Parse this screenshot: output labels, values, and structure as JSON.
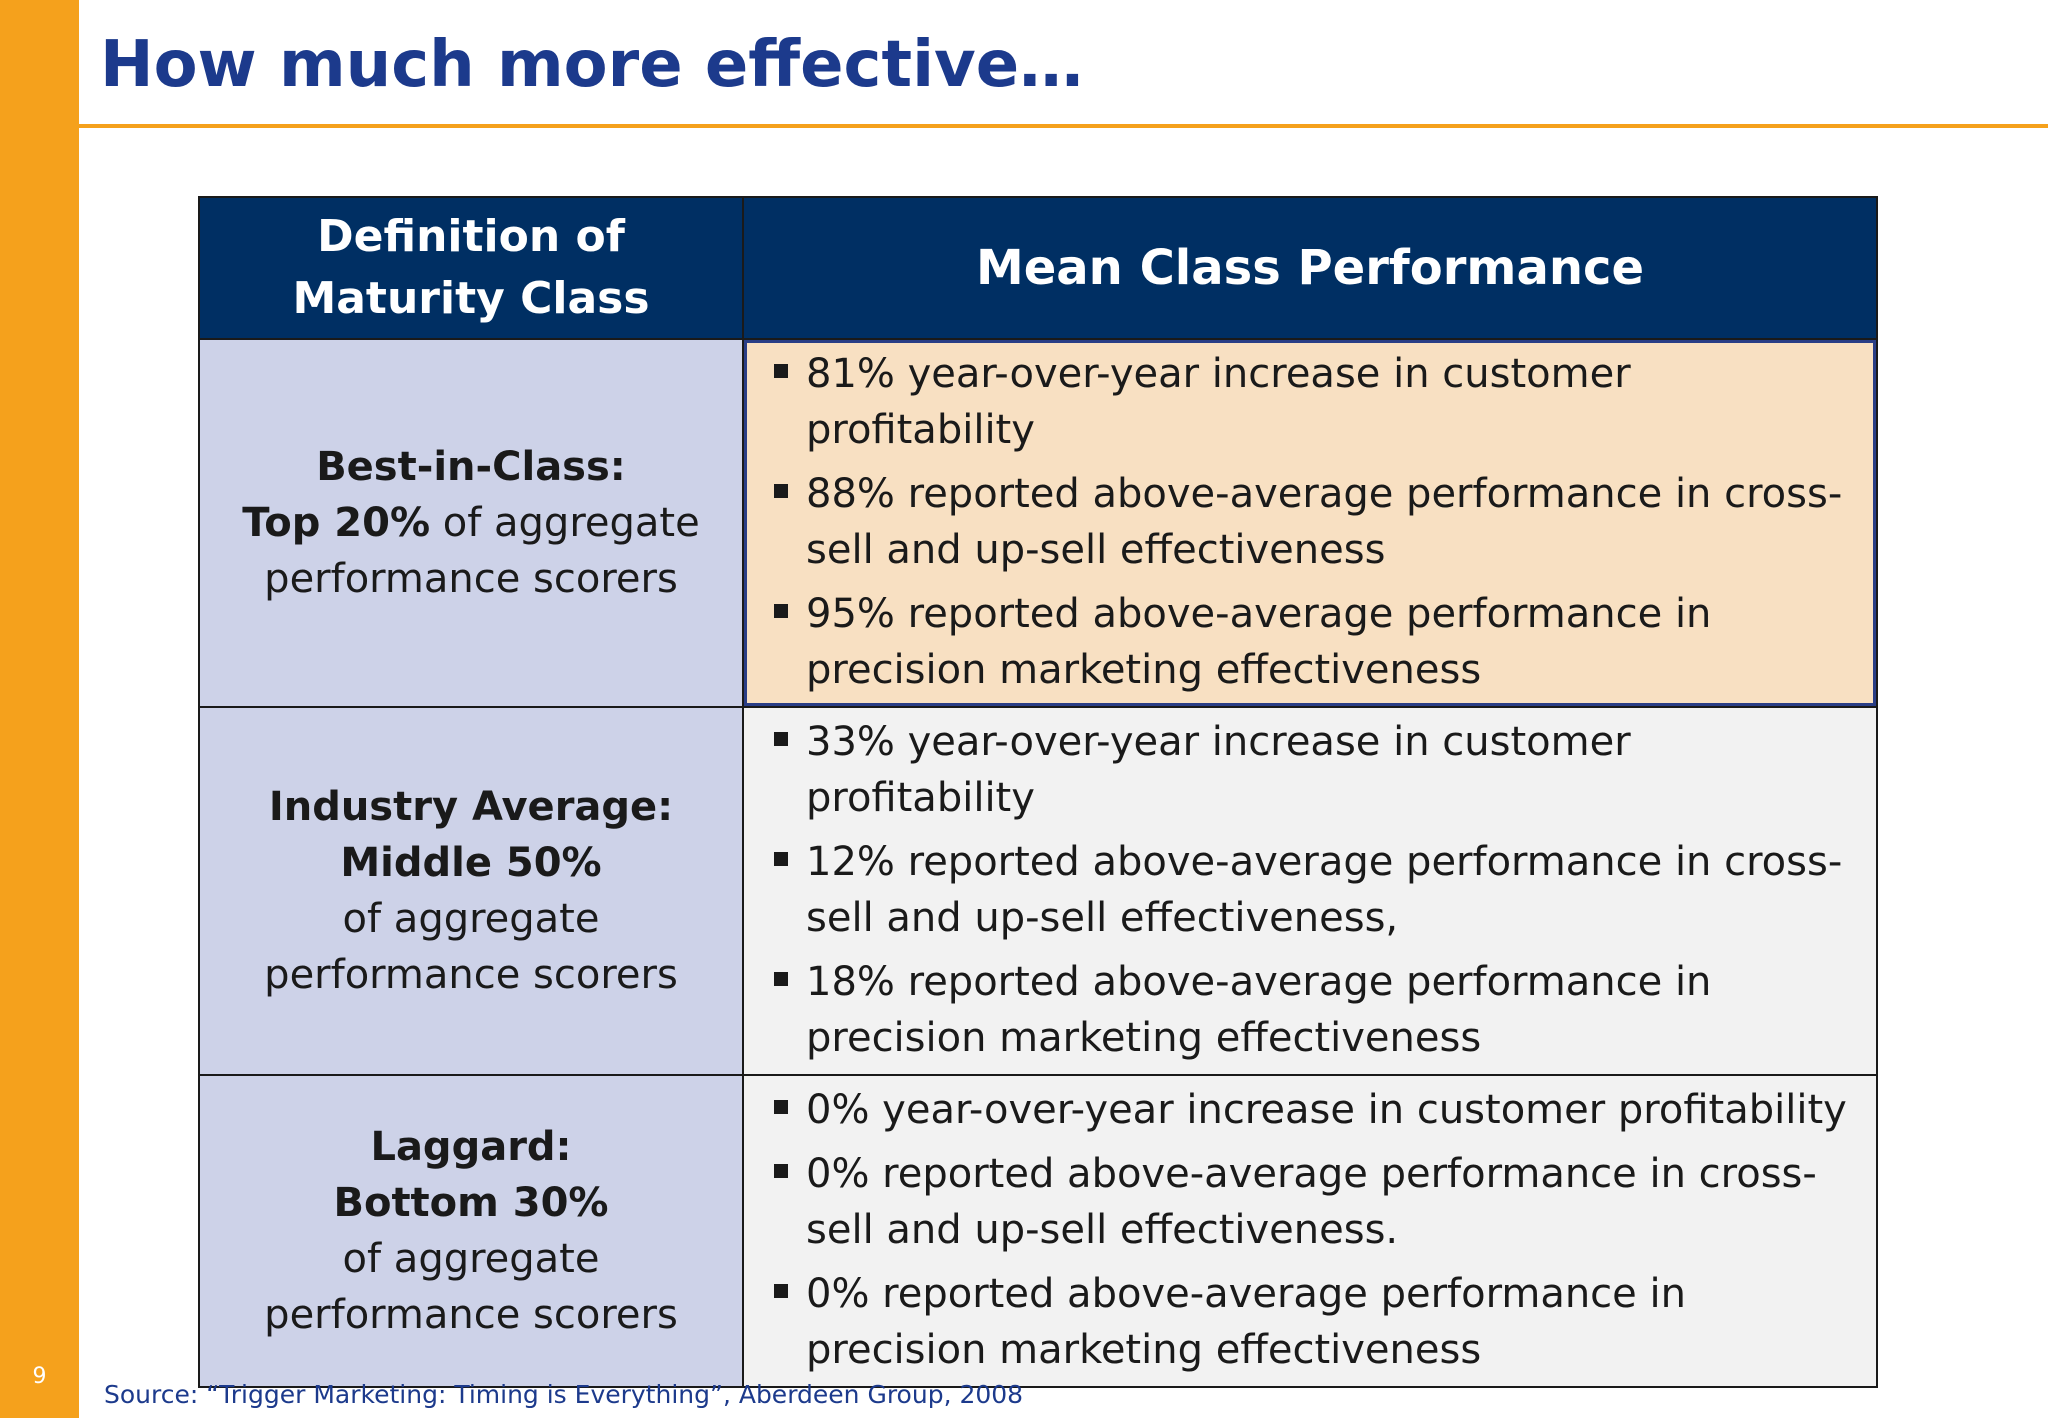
{
  "slide": {
    "title": "How much more effective…",
    "page_number": "9",
    "source": "Source:  “Trigger Marketing: Timing is Everything”, Aberdeen Group, 2008",
    "colors": {
      "accent_orange": "#f5a11c",
      "title_blue": "#1c3a8c",
      "header_navy": "#002f63",
      "definition_cell": "#cdd2e8",
      "highlight_cell": "#f8e0c2",
      "body_cell": "#f2f2f2"
    }
  },
  "table": {
    "headers": {
      "definition": "Definition of Maturity Class",
      "performance": "Mean Class Performance"
    },
    "rows": [
      {
        "class_name": "Best-in-Class:",
        "segment_bold": "Top 20%",
        "segment_rest": " of aggregate",
        "aggregate": "performance scorers",
        "bullets": [
          "81% year-over-year increase in customer profitability",
          "88% reported above-average performance in cross-sell and up-sell effectiveness",
          "95% reported above-average performance in precision marketing effectiveness"
        ]
      },
      {
        "class_name": "Industry Average:",
        "segment_bold": "Middle 50%",
        "segment_rest": "",
        "aggregate": "of aggregate performance scorers",
        "bullets": [
          "33% year-over-year increase in customer profitability",
          "12% reported above-average performance in cross-sell and up-sell effectiveness,",
          "18% reported above-average performance in precision marketing effectiveness"
        ]
      },
      {
        "class_name": "Laggard:",
        "segment_bold": "Bottom 30%",
        "segment_rest": "",
        "aggregate": "of aggregate performance scorers",
        "bullets": [
          "0% year-over-year increase in customer profitability",
          "0% reported above-average performance in cross-sell and up-sell effectiveness.",
          "0% reported above-average performance in precision marketing effectiveness"
        ]
      }
    ]
  }
}
